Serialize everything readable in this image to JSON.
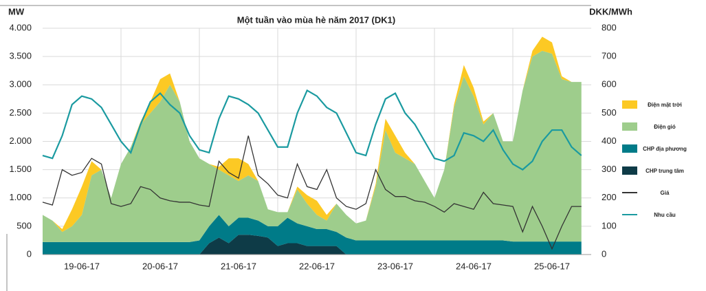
{
  "chart_data": {
    "type": "area",
    "title": "Một tuần vào mùa hè năm 2017 (DK1)",
    "y_label": "MW",
    "y2_label": "DKK/MWh",
    "categories": [
      null,
      null,
      null,
      null,
      "19-06-17",
      null,
      null,
      null,
      null,
      null,
      null,
      null,
      "20-06-17",
      null,
      null,
      null,
      null,
      null,
      null,
      null,
      "21-06-17",
      null,
      null,
      null,
      null,
      null,
      null,
      null,
      "22-06-17",
      null,
      null,
      null,
      null,
      null,
      null,
      null,
      "23-06-17",
      null,
      null,
      null,
      null,
      null,
      null,
      null,
      "24-06-17",
      null,
      null,
      null,
      null,
      null,
      null,
      null,
      "25-06-17",
      null,
      null,
      null
    ],
    "ylim": [
      0,
      4000
    ],
    "yticks": [
      {
        "value": 0,
        "label": "0"
      },
      {
        "value": 500,
        "label": "500"
      },
      {
        "value": 1000,
        "label": "1.000"
      },
      {
        "value": 1500,
        "label": "1.500"
      },
      {
        "value": 2000,
        "label": "2.000"
      },
      {
        "value": 2500,
        "label": "2.500"
      },
      {
        "value": 3000,
        "label": "3.000"
      },
      {
        "value": 3500,
        "label": "3.500"
      },
      {
        "value": 4000,
        "label": "4.000"
      }
    ],
    "y2lim": [
      0,
      800
    ],
    "y2ticks": [
      0,
      100,
      200,
      300,
      400,
      500,
      600,
      700,
      800
    ],
    "grid": true,
    "legend": "right",
    "series": [
      {
        "name": "CHP trung tâm",
        "kind": "area",
        "color": "#0e3b47",
        "values": [
          0,
          0,
          0,
          0,
          0,
          0,
          0,
          0,
          0,
          0,
          0,
          0,
          0,
          0,
          0,
          0,
          0,
          200,
          300,
          200,
          350,
          350,
          330,
          300,
          150,
          200,
          200,
          150,
          150,
          150,
          150,
          0,
          0,
          0,
          0,
          0,
          0,
          0,
          0,
          0,
          0,
          0,
          0,
          0,
          0,
          0,
          0,
          0,
          0,
          0,
          0,
          0,
          0,
          0,
          0,
          0
        ]
      },
      {
        "name": "CHP địa phương",
        "kind": "area",
        "color": "#007b88",
        "values": [
          220,
          220,
          220,
          220,
          220,
          220,
          220,
          220,
          220,
          220,
          220,
          220,
          220,
          220,
          220,
          220,
          250,
          300,
          400,
          300,
          300,
          300,
          270,
          200,
          350,
          450,
          350,
          350,
          300,
          300,
          250,
          300,
          250,
          250,
          250,
          250,
          250,
          250,
          250,
          250,
          250,
          250,
          250,
          250,
          250,
          250,
          250,
          250,
          230,
          230,
          230,
          230,
          230,
          230,
          230,
          230
        ]
      },
      {
        "name": "Điện gió",
        "kind": "area",
        "color": "#9ecd8c",
        "values": [
          480,
          380,
          180,
          280,
          480,
          1180,
          1280,
          780,
          1380,
          1680,
          2080,
          2280,
          2480,
          2780,
          2480,
          1780,
          1450,
          1100,
          800,
          900,
          650,
          750,
          700,
          300,
          250,
          100,
          600,
          400,
          250,
          150,
          500,
          400,
          300,
          350,
          950,
          1950,
          1550,
          1450,
          1350,
          1050,
          750,
          1250,
          2350,
          2900,
          2550,
          2050,
          2250,
          1750,
          1770,
          2670,
          3270,
          3370,
          3320,
          2870,
          2820,
          2820
        ]
      },
      {
        "name": "Điện mặt trời",
        "kind": "area",
        "color": "#fcc924",
        "values": [
          0,
          0,
          50,
          300,
          500,
          250,
          0,
          0,
          0,
          0,
          50,
          200,
          400,
          200,
          0,
          0,
          0,
          0,
          50,
          300,
          400,
          200,
          0,
          0,
          0,
          0,
          50,
          150,
          250,
          100,
          0,
          0,
          0,
          0,
          50,
          200,
          300,
          100,
          0,
          0,
          0,
          0,
          50,
          200,
          150,
          50,
          0,
          0,
          0,
          0,
          100,
          250,
          200,
          50,
          0,
          0
        ]
      },
      {
        "name": "Giá",
        "kind": "line",
        "axis": "y2",
        "color": "#333333",
        "values": [
          185,
          175,
          300,
          280,
          290,
          340,
          320,
          180,
          170,
          180,
          240,
          230,
          200,
          190,
          185,
          185,
          175,
          170,
          330,
          290,
          270,
          420,
          280,
          250,
          210,
          200,
          320,
          240,
          230,
          300,
          200,
          170,
          160,
          180,
          300,
          230,
          205,
          205,
          190,
          185,
          170,
          150,
          180,
          170,
          160,
          220,
          180,
          175,
          170,
          80,
          170,
          100,
          20,
          100,
          170,
          170
        ]
      },
      {
        "name": "Nhu cầu",
        "kind": "line",
        "color": "#1a9aa0",
        "values": [
          1750,
          1700,
          2100,
          2650,
          2800,
          2750,
          2600,
          2300,
          2000,
          1800,
          2300,
          2700,
          2850,
          2650,
          2500,
          2100,
          1850,
          1800,
          2400,
          2800,
          2750,
          2650,
          2500,
          2200,
          1900,
          1900,
          2500,
          2900,
          2800,
          2600,
          2500,
          2150,
          1800,
          1750,
          2300,
          2750,
          2850,
          2500,
          2300,
          2000,
          1700,
          1650,
          1750,
          2150,
          2100,
          2000,
          2200,
          1850,
          1600,
          1500,
          1650,
          2000,
          2200,
          2200,
          1900,
          1750
        ]
      }
    ]
  }
}
